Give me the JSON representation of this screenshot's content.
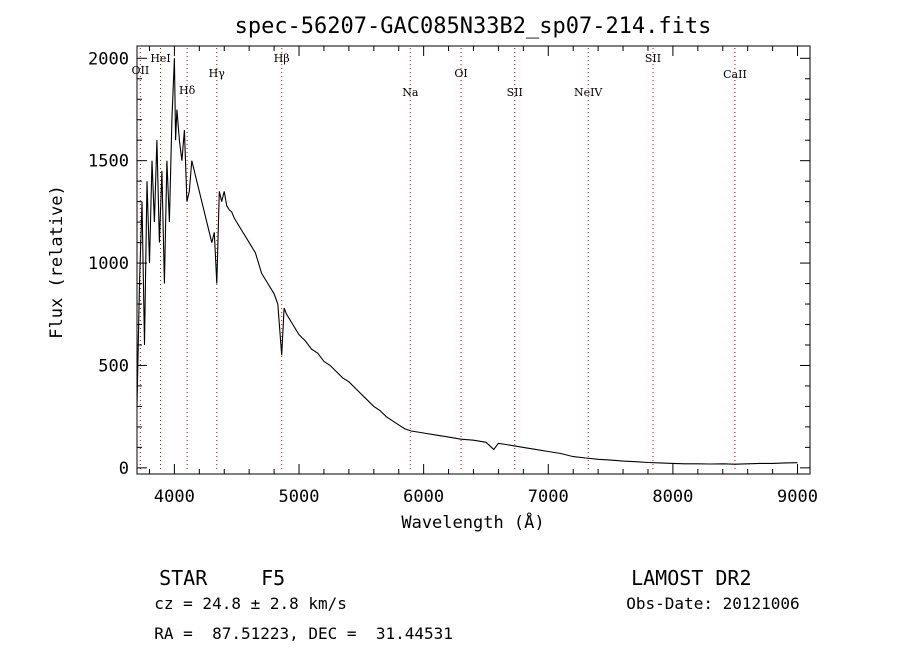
{
  "chart_data": {
    "type": "line",
    "title": "spec-56207-GAC085N33B2_sp07-214.fits",
    "xlabel": "Wavelength (Å)",
    "ylabel": "Flux (relative)",
    "xlim": [
      3700,
      9100
    ],
    "ylim": [
      -30,
      2060
    ],
    "xticks": [
      4000,
      5000,
      6000,
      7000,
      8000,
      9000
    ],
    "xtick_labels": [
      "4000",
      "5000",
      "6000",
      "7000",
      "8000",
      "9000"
    ],
    "yticks": [
      0,
      500,
      1000,
      1500,
      2000
    ],
    "ytick_labels": [
      "0",
      "500",
      "1000",
      "1500",
      "2000"
    ],
    "grid": false,
    "line_color": "#000000",
    "marker_color": "#cc0000",
    "spectral_lines": [
      {
        "label": "OII",
        "wavelength": 3727
      },
      {
        "label": "HeI",
        "wavelength": 3889
      },
      {
        "label": "Hδ",
        "wavelength": 4102
      },
      {
        "label": "Hγ",
        "wavelength": 4340
      },
      {
        "label": "Hβ",
        "wavelength": 4861
      },
      {
        "label": "Na",
        "wavelength": 5893
      },
      {
        "label": "OI",
        "wavelength": 6300
      },
      {
        "label": "SII",
        "wavelength": 6731
      },
      {
        "label": "NeIV",
        "wavelength": 7320
      },
      {
        "label": "SII",
        "wavelength": 7840
      },
      {
        "label": "CaII",
        "wavelength": 8498
      }
    ],
    "series": [
      {
        "x": [
          3700,
          3720,
          3740,
          3760,
          3780,
          3800,
          3820,
          3840,
          3860,
          3880,
          3900,
          3920,
          3940,
          3960,
          3980,
          4000,
          4010,
          4020,
          4040,
          4060,
          4080,
          4100,
          4120,
          4140,
          4160,
          4180,
          4200,
          4220,
          4240,
          4260,
          4280,
          4300,
          4320,
          4340,
          4360,
          4380,
          4400,
          4420,
          4440,
          4460,
          4480,
          4500,
          4550,
          4600,
          4650,
          4700,
          4750,
          4800,
          4830,
          4861,
          4880,
          4900,
          4950,
          5000,
          5050,
          5100,
          5150,
          5200,
          5250,
          5300,
          5350,
          5400,
          5450,
          5500,
          5550,
          5600,
          5650,
          5700,
          5750,
          5800,
          5850,
          5900,
          5950,
          6000,
          6100,
          6200,
          6300,
          6400,
          6500,
          6563,
          6600,
          6700,
          6800,
          6900,
          7000,
          7100,
          7200,
          7300,
          7400,
          7500,
          7600,
          7700,
          7800,
          7900,
          8000,
          8100,
          8200,
          8300,
          8400,
          8500,
          8600,
          8700,
          8800,
          8900,
          9000
        ],
        "y": [
          300,
          900,
          1300,
          600,
          1400,
          1000,
          1500,
          1200,
          1600,
          1100,
          1450,
          900,
          1500,
          1200,
          1700,
          2000,
          1600,
          1750,
          1600,
          1500,
          1650,
          1300,
          1350,
          1500,
          1450,
          1400,
          1350,
          1300,
          1250,
          1200,
          1150,
          1100,
          1150,
          900,
          1350,
          1300,
          1350,
          1280,
          1260,
          1250,
          1220,
          1200,
          1150,
          1100,
          1050,
          950,
          900,
          850,
          800,
          550,
          780,
          750,
          700,
          650,
          620,
          580,
          560,
          520,
          500,
          470,
          440,
          420,
          390,
          360,
          330,
          300,
          280,
          250,
          230,
          210,
          190,
          180,
          175,
          170,
          160,
          150,
          140,
          135,
          125,
          90,
          120,
          110,
          100,
          90,
          80,
          70,
          55,
          48,
          42,
          38,
          33,
          30,
          26,
          24,
          22,
          20,
          20,
          19,
          20,
          18,
          20,
          22,
          22,
          24,
          25
        ]
      }
    ]
  },
  "info": {
    "object_class": "STAR",
    "subclass": "F5",
    "survey": "LAMOST DR2",
    "cz": "cz = 24.8 ± 2.8 km/s",
    "obs_date": "Obs-Date: 20121006",
    "coords": "RA =  87.51223, DEC =  31.44531"
  }
}
